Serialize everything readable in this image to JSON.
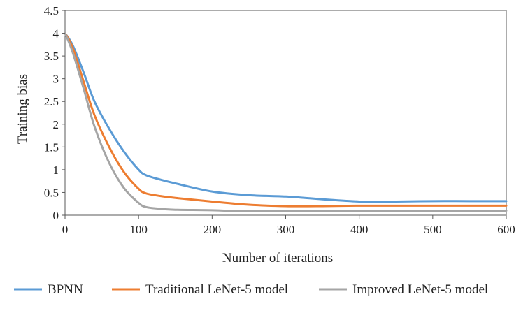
{
  "chart_data": {
    "type": "line",
    "xlabel": "Number of iterations",
    "ylabel": "Training bias",
    "xlim": [
      0,
      600
    ],
    "ylim": [
      0,
      4.5
    ],
    "xticks": [
      0,
      100,
      200,
      300,
      400,
      500,
      600
    ],
    "yticks": [
      0,
      0.5,
      1,
      1.5,
      2,
      2.5,
      3,
      3.5,
      4,
      4.5
    ],
    "xtick_labels": [
      "0",
      "100",
      "200",
      "300",
      "400",
      "500",
      "600"
    ],
    "ytick_labels": [
      "0",
      "0.5",
      "1",
      "1.5",
      "2",
      "2.5",
      "3",
      "3.5",
      "4",
      "4.5"
    ],
    "grid": false,
    "legend_position": "bottom",
    "series": [
      {
        "name": "BPNN",
        "color": "#5b9bd5",
        "x": [
          0,
          10,
          25,
          40,
          60,
          80,
          100,
          110,
          130,
          150,
          200,
          250,
          300,
          350,
          400,
          420,
          450,
          500,
          550,
          600
        ],
        "y": [
          4.0,
          3.75,
          3.15,
          2.5,
          1.9,
          1.4,
          1.0,
          0.88,
          0.78,
          0.7,
          0.52,
          0.44,
          0.41,
          0.35,
          0.3,
          0.3,
          0.3,
          0.31,
          0.31,
          0.31
        ]
      },
      {
        "name": "Traditional LeNet-5 model",
        "color": "#ed7d31",
        "x": [
          0,
          10,
          25,
          40,
          60,
          80,
          100,
          110,
          130,
          150,
          200,
          250,
          300,
          350,
          400,
          450,
          500,
          550,
          600
        ],
        "y": [
          4.0,
          3.7,
          2.95,
          2.2,
          1.5,
          0.95,
          0.58,
          0.48,
          0.42,
          0.38,
          0.3,
          0.23,
          0.2,
          0.2,
          0.21,
          0.21,
          0.21,
          0.21,
          0.21
        ]
      },
      {
        "name": "Improved LeNet-5 model",
        "color": "#a5a5a5",
        "x": [
          0,
          10,
          25,
          40,
          60,
          80,
          100,
          110,
          130,
          150,
          200,
          230,
          250,
          300,
          350,
          400,
          450,
          500,
          550,
          600
        ],
        "y": [
          4.0,
          3.6,
          2.8,
          1.95,
          1.15,
          0.6,
          0.27,
          0.18,
          0.14,
          0.12,
          0.11,
          0.09,
          0.09,
          0.1,
          0.1,
          0.1,
          0.1,
          0.1,
          0.1,
          0.1
        ]
      }
    ]
  }
}
